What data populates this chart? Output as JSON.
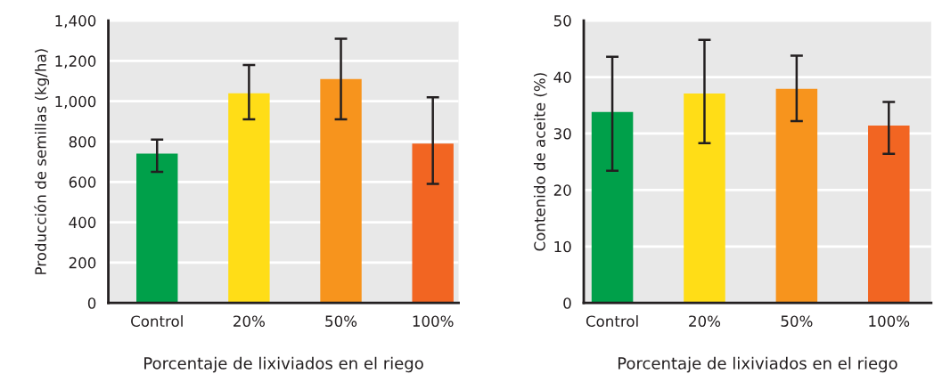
{
  "chart_data": [
    {
      "type": "bar",
      "xlabel": "Porcentaje de lixiviados en el riego",
      "ylabel": "Producción de semillas (kg/ha)",
      "categories": [
        "Control",
        "20%",
        "50%",
        "100%"
      ],
      "values": [
        740,
        1040,
        1110,
        790
      ],
      "errors": [
        [
          650,
          810
        ],
        [
          910,
          1180
        ],
        [
          910,
          1310
        ],
        [
          590,
          1020
        ]
      ],
      "colors": [
        "#00a04a",
        "#ffdd17",
        "#f7941d",
        "#f26522"
      ],
      "ylim": [
        0,
        1400
      ],
      "yticks": [
        0,
        200,
        400,
        600,
        800,
        {
          "value": 1000,
          "label": "1,000"
        },
        {
          "value": 1200,
          "label": "1,200"
        },
        {
          "value": 1400,
          "label": "1,400"
        }
      ],
      "grid": "y"
    },
    {
      "type": "bar",
      "xlabel": "Porcentaje de lixiviados en el riego",
      "ylabel": "Contenido de aceite (%)",
      "categories": [
        "Control",
        "20%",
        "50%",
        "100%"
      ],
      "values": [
        33.8,
        37.1,
        37.9,
        31.4
      ],
      "errors": [
        [
          23.4,
          43.6
        ],
        [
          28.3,
          46.6
        ],
        [
          32.2,
          43.8
        ],
        [
          26.4,
          35.6
        ]
      ],
      "colors": [
        "#00a04a",
        "#ffdd17",
        "#f7941d",
        "#f26522"
      ],
      "ylim": [
        0,
        50
      ],
      "yticks": [
        0,
        10,
        20,
        30,
        40,
        50
      ],
      "grid": "y"
    }
  ]
}
